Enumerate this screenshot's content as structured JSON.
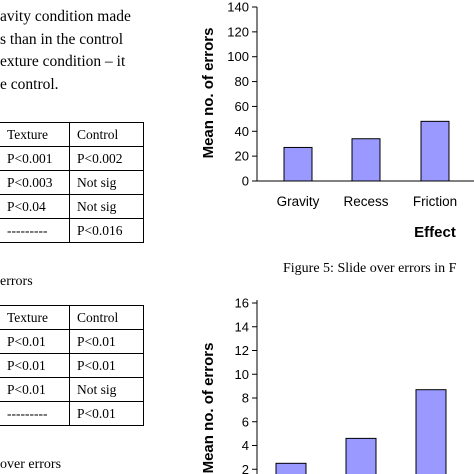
{
  "text_block": {
    "lines": [
      "avity condition made",
      "s than in the control",
      "exture condition – it",
      "e control."
    ]
  },
  "table1": {
    "headers": [
      "Texture",
      "Control"
    ],
    "rows": [
      [
        "P<0.001",
        "P<0.002"
      ],
      [
        "P<0.003",
        "Not sig"
      ],
      [
        "P<0.04",
        "Not sig"
      ],
      [
        "---------",
        "P<0.016"
      ]
    ]
  },
  "table1_caption": "errors",
  "table2": {
    "headers": [
      "Texture",
      "Control"
    ],
    "rows": [
      [
        "P<0.01",
        "P<0.01"
      ],
      [
        "P<0.01",
        "P<0.01"
      ],
      [
        "P<0.01",
        "Not sig"
      ],
      [
        "---------",
        "P<0.01"
      ]
    ]
  },
  "table2_caption": "over errors",
  "figure5_caption": "Figure 5: Slide over errors in F",
  "chart_data": [
    {
      "type": "bar",
      "categories": [
        "Gravity",
        "Recess",
        "Friction"
      ],
      "values": [
        27,
        34,
        48
      ],
      "title": "",
      "xlabel": "Effect",
      "ylabel": "Mean no. of errors",
      "ylim": [
        0,
        140
      ],
      "yticks": [
        0,
        20,
        40,
        60,
        80,
        100,
        120,
        140
      ],
      "bar_color": "#9999ff",
      "grid": false
    },
    {
      "type": "bar",
      "categories": [
        "",
        "",
        ""
      ],
      "values": [
        2.5,
        4.6,
        8.7
      ],
      "title": "",
      "xlabel": "",
      "ylabel": "Mean no. of errors",
      "ylim": [
        0,
        16
      ],
      "yticks": [
        2,
        4,
        6,
        8,
        10,
        12,
        14,
        16
      ],
      "bar_color": "#9999ff",
      "grid": false
    }
  ]
}
